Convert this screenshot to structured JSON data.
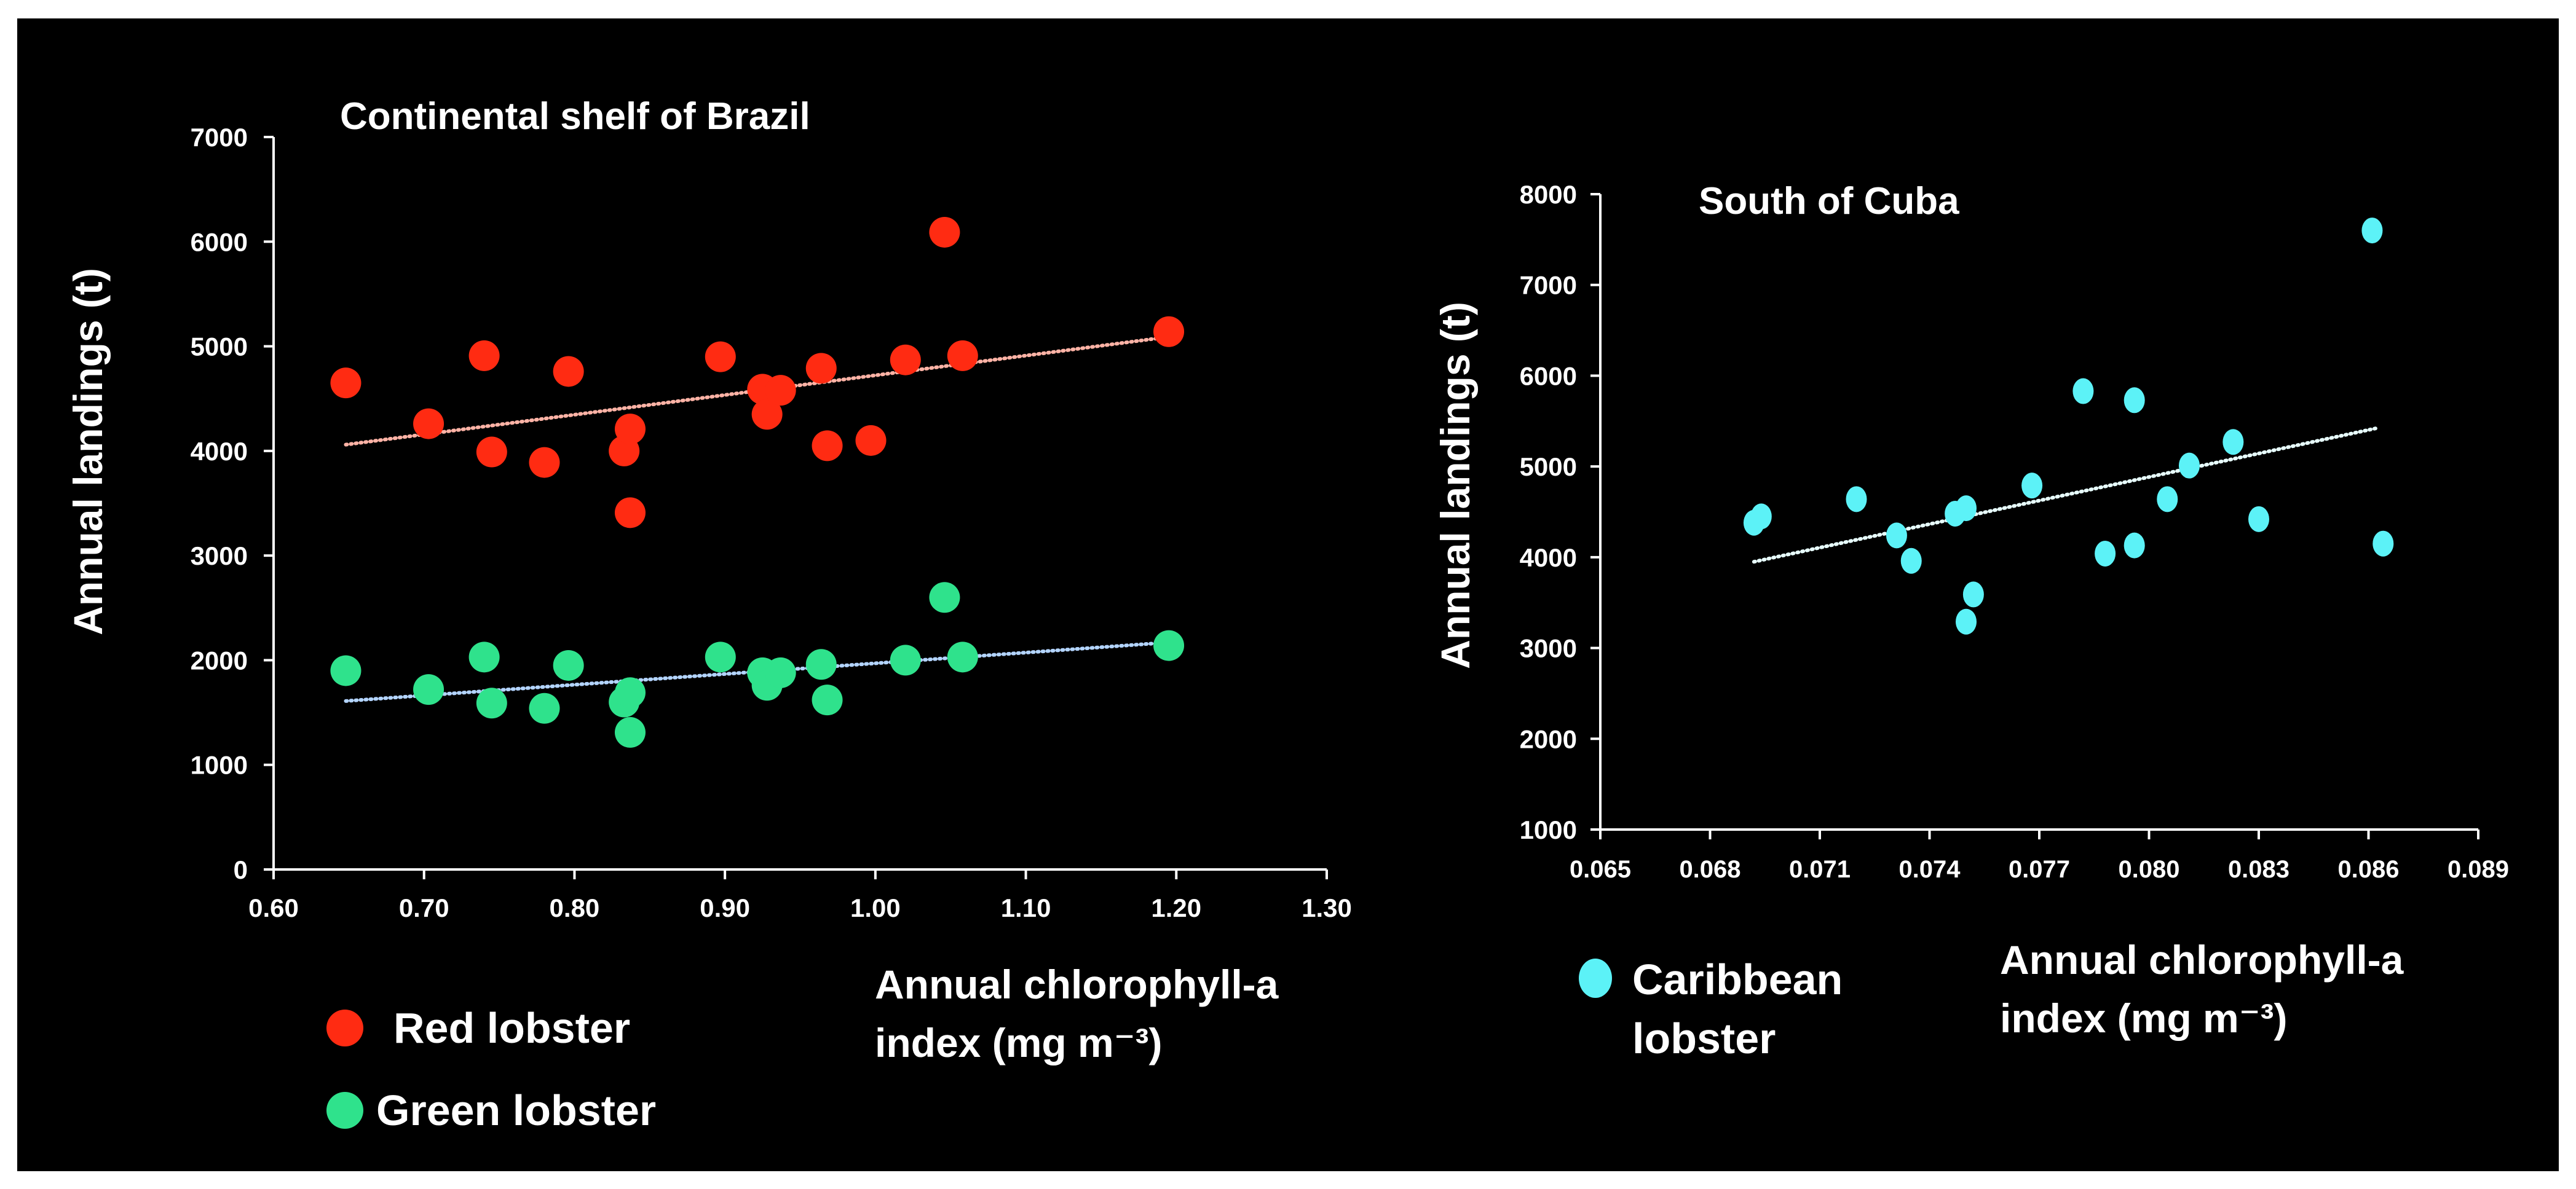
{
  "chart_data": [
    {
      "type": "scatter",
      "title": "Continental shelf of Brazil",
      "xlabel_lines": [
        "Annual chlorophyll-a",
        "index (mg m⁻³)"
      ],
      "ylabel": "Annual landings (t)",
      "xlim": [
        0.6,
        1.3
      ],
      "ylim": [
        0,
        7000
      ],
      "xticks": [
        "0.60",
        "0.70",
        "0.80",
        "0.90",
        "1.00",
        "1.10",
        "1.20",
        "1.30"
      ],
      "yticks": [
        "0",
        "1000",
        "2000",
        "3000",
        "4000",
        "5000",
        "6000",
        "7000"
      ],
      "grid": false,
      "legend": "bottom-left",
      "series": [
        {
          "name": "Red lobster",
          "color": "#ff2b12",
          "trend_color": "#ffb3a6",
          "trend": {
            "x": [
              0.648,
              1.195
            ],
            "y": [
              4060,
              5090
            ]
          },
          "points": [
            {
              "x": 0.648,
              "y": 4650
            },
            {
              "x": 0.703,
              "y": 4260
            },
            {
              "x": 0.74,
              "y": 4910
            },
            {
              "x": 0.745,
              "y": 3990
            },
            {
              "x": 0.78,
              "y": 3890
            },
            {
              "x": 0.796,
              "y": 4760
            },
            {
              "x": 0.833,
              "y": 4000
            },
            {
              "x": 0.837,
              "y": 4210
            },
            {
              "x": 0.837,
              "y": 3410
            },
            {
              "x": 0.897,
              "y": 4900
            },
            {
              "x": 0.925,
              "y": 4590
            },
            {
              "x": 0.928,
              "y": 4350
            },
            {
              "x": 0.937,
              "y": 4580
            },
            {
              "x": 0.964,
              "y": 4790
            },
            {
              "x": 0.968,
              "y": 4050
            },
            {
              "x": 0.997,
              "y": 4100
            },
            {
              "x": 1.02,
              "y": 4870
            },
            {
              "x": 1.046,
              "y": 6090
            },
            {
              "x": 1.058,
              "y": 4910
            },
            {
              "x": 1.195,
              "y": 5140
            }
          ]
        },
        {
          "name": "Green lobster",
          "color": "#2fe28c",
          "trend_color": "#b3d4ff",
          "trend": {
            "x": [
              0.648,
              1.195
            ],
            "y": [
              1610,
              2170
            ]
          },
          "points": [
            {
              "x": 0.648,
              "y": 1900
            },
            {
              "x": 0.703,
              "y": 1720
            },
            {
              "x": 0.74,
              "y": 2030
            },
            {
              "x": 0.745,
              "y": 1590
            },
            {
              "x": 0.78,
              "y": 1540
            },
            {
              "x": 0.796,
              "y": 1950
            },
            {
              "x": 0.833,
              "y": 1600
            },
            {
              "x": 0.837,
              "y": 1690
            },
            {
              "x": 0.837,
              "y": 1310
            },
            {
              "x": 0.897,
              "y": 2030
            },
            {
              "x": 0.925,
              "y": 1880
            },
            {
              "x": 0.928,
              "y": 1760
            },
            {
              "x": 0.937,
              "y": 1880
            },
            {
              "x": 0.964,
              "y": 1960
            },
            {
              "x": 0.968,
              "y": 1620
            },
            {
              "x": 1.02,
              "y": 2000
            },
            {
              "x": 1.046,
              "y": 2600
            },
            {
              "x": 1.058,
              "y": 2030
            },
            {
              "x": 1.195,
              "y": 2140
            }
          ]
        }
      ]
    },
    {
      "type": "scatter",
      "title": "South of Cuba",
      "xlabel_lines": [
        "Annual chlorophyll-a",
        "index (mg m⁻³)"
      ],
      "ylabel": "Annual landings (t)",
      "xlim": [
        0.065,
        0.089
      ],
      "ylim": [
        1000,
        8000
      ],
      "xticks": [
        "0.065",
        "0.068",
        "0.071",
        "0.074",
        "0.077",
        "0.080",
        "0.083",
        "0.086",
        "0.089"
      ],
      "yticks": [
        "1000",
        "2000",
        "3000",
        "4000",
        "5000",
        "6000",
        "7000",
        "8000"
      ],
      "grid": false,
      "legend": "bottom-left",
      "series": [
        {
          "name_lines": [
            "Caribbean",
            "lobster"
          ],
          "color": "#5cf2f7",
          "trend_color": "#e8ffff",
          "trend": {
            "x": [
              0.0692,
              0.0862
            ],
            "y": [
              3950,
              5420
            ]
          },
          "points": [
            {
              "x": 0.0692,
              "y": 4380
            },
            {
              "x": 0.0694,
              "y": 4450
            },
            {
              "x": 0.072,
              "y": 4640
            },
            {
              "x": 0.0731,
              "y": 4240
            },
            {
              "x": 0.0735,
              "y": 3960
            },
            {
              "x": 0.0747,
              "y": 4480
            },
            {
              "x": 0.075,
              "y": 4540
            },
            {
              "x": 0.075,
              "y": 3290
            },
            {
              "x": 0.0752,
              "y": 3590
            },
            {
              "x": 0.0768,
              "y": 4790
            },
            {
              "x": 0.0782,
              "y": 5830
            },
            {
              "x": 0.0788,
              "y": 4040
            },
            {
              "x": 0.0796,
              "y": 5730
            },
            {
              "x": 0.0796,
              "y": 4130
            },
            {
              "x": 0.0805,
              "y": 4640
            },
            {
              "x": 0.0811,
              "y": 5010
            },
            {
              "x": 0.0823,
              "y": 5270
            },
            {
              "x": 0.083,
              "y": 4420
            },
            {
              "x": 0.0861,
              "y": 7600
            },
            {
              "x": 0.0864,
              "y": 4150
            }
          ]
        }
      ]
    }
  ]
}
